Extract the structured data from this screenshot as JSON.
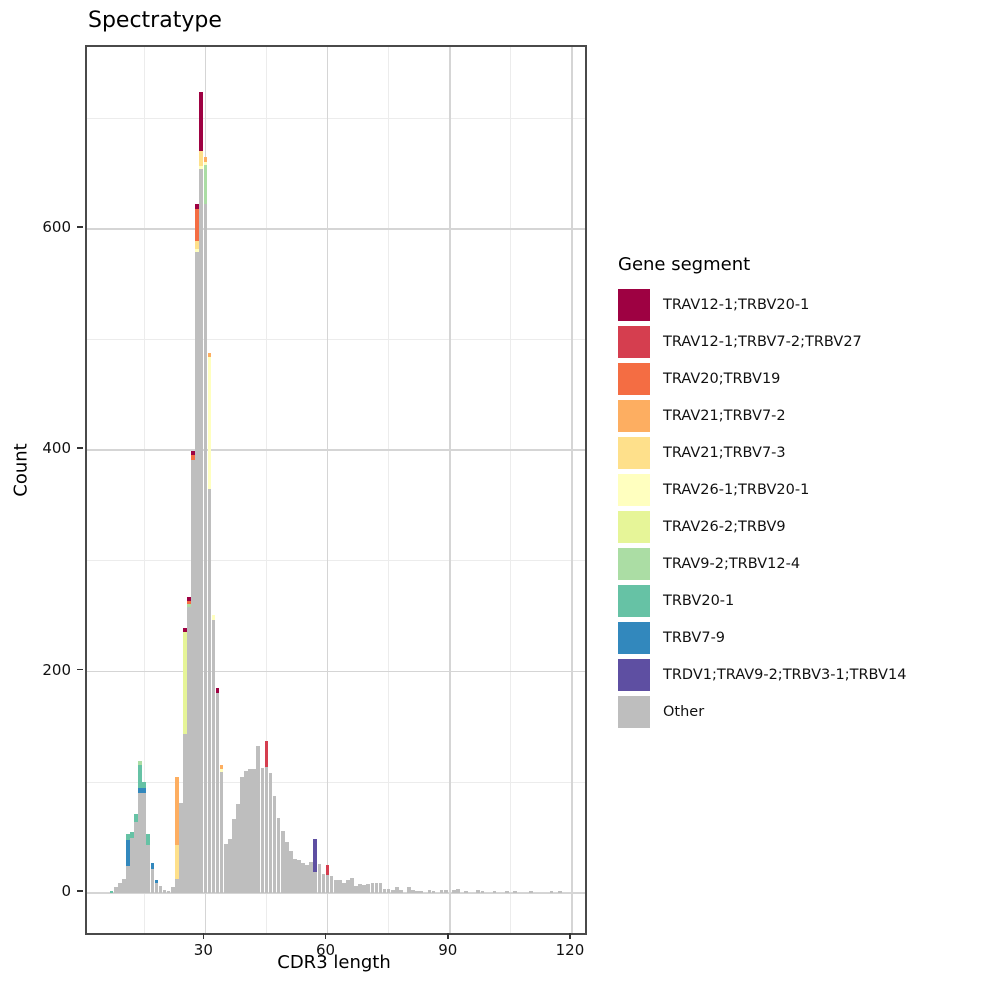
{
  "title": "Spectratype",
  "axes": {
    "x_label": "CDR3 length",
    "y_label": "Count",
    "x_tick_labels": [
      "30",
      "60",
      "90",
      "120"
    ],
    "y_tick_labels": [
      "0",
      "200",
      "400",
      "600"
    ]
  },
  "legend": {
    "title": "Gene segment",
    "entries": [
      {
        "key": "c1",
        "label": "TRAV12-1;TRBV20-1",
        "color": "#9E0142"
      },
      {
        "key": "c2",
        "label": "TRAV12-1;TRBV7-2;TRBV27",
        "color": "#D53E4F"
      },
      {
        "key": "c3",
        "label": "TRAV20;TRBV19",
        "color": "#F46D43"
      },
      {
        "key": "c4",
        "label": "TRAV21;TRBV7-2",
        "color": "#FDAE61"
      },
      {
        "key": "c5",
        "label": "TRAV21;TRBV7-3",
        "color": "#FEE08B"
      },
      {
        "key": "c6",
        "label": "TRAV26-1;TRBV20-1",
        "color": "#FFFFBF"
      },
      {
        "key": "c7",
        "label": "TRAV26-2;TRBV9",
        "color": "#E6F598"
      },
      {
        "key": "c8",
        "label": "TRAV9-2;TRBV12-4",
        "color": "#ABDDA4"
      },
      {
        "key": "c9",
        "label": "TRBV20-1",
        "color": "#66C2A5"
      },
      {
        "key": "c10",
        "label": "TRBV7-9",
        "color": "#3288BD"
      },
      {
        "key": "c11",
        "label": "TRDV1;TRAV9-2;TRBV3-1;TRBV14",
        "color": "#5E4FA2"
      },
      {
        "key": "other",
        "label": "Other",
        "color": "#BEBEBE"
      }
    ]
  },
  "chart_data": {
    "type": "bar",
    "subtype": "stacked-histogram",
    "title": "Spectratype",
    "xlabel": "CDR3 length",
    "ylabel": "Count",
    "grid": "on",
    "legend_position": "right",
    "x_range": [
      0.95,
      123.2
    ],
    "y_range": [
      -36.1,
      764.2
    ],
    "x_major_ticks": [
      30,
      60,
      90,
      120
    ],
    "x_minor_gridlines": [
      15,
      45,
      75,
      105
    ],
    "y_major_ticks": [
      0,
      200,
      400,
      600
    ],
    "y_minor_gridlines": [
      100,
      300,
      500,
      700
    ],
    "bar_width_units": 0.9,
    "stack_order_note": "segments listed bottom-to-top; 'other' at base, legend order c11->c1 upward",
    "bars": [
      {
        "x": 7,
        "segments": [
          [
            "c9",
            2
          ]
        ]
      },
      {
        "x": 8,
        "segments": [
          [
            "other",
            5
          ]
        ]
      },
      {
        "x": 9,
        "segments": [
          [
            "other",
            9
          ]
        ]
      },
      {
        "x": 10,
        "segments": [
          [
            "other",
            13
          ]
        ]
      },
      {
        "x": 11,
        "segments": [
          [
            "other",
            24
          ],
          [
            "c10",
            24
          ],
          [
            "c9",
            5
          ]
        ]
      },
      {
        "x": 12,
        "segments": [
          [
            "other",
            50
          ],
          [
            "c9",
            5
          ]
        ]
      },
      {
        "x": 13,
        "segments": [
          [
            "other",
            64
          ],
          [
            "c9",
            7
          ]
        ]
      },
      {
        "x": 14,
        "segments": [
          [
            "other",
            90
          ],
          [
            "c10",
            5
          ],
          [
            "c9",
            21
          ],
          [
            "c8",
            3
          ]
        ]
      },
      {
        "x": 15,
        "segments": [
          [
            "other",
            90
          ],
          [
            "c10",
            5
          ],
          [
            "c9",
            5
          ]
        ]
      },
      {
        "x": 16,
        "segments": [
          [
            "other",
            43
          ],
          [
            "c9",
            10
          ]
        ]
      },
      {
        "x": 17,
        "segments": [
          [
            "other",
            22
          ],
          [
            "c10",
            5
          ]
        ]
      },
      {
        "x": 18,
        "segments": [
          [
            "other",
            9
          ],
          [
            "c10",
            3
          ]
        ]
      },
      {
        "x": 19,
        "segments": [
          [
            "other",
            6
          ]
        ]
      },
      {
        "x": 20,
        "segments": [
          [
            "other",
            3
          ]
        ]
      },
      {
        "x": 21,
        "segments": [
          [
            "other",
            2
          ]
        ]
      },
      {
        "x": 22,
        "segments": [
          [
            "other",
            5
          ]
        ]
      },
      {
        "x": 23,
        "segments": [
          [
            "other",
            13
          ],
          [
            "c5",
            30
          ],
          [
            "c4",
            62
          ]
        ]
      },
      {
        "x": 24,
        "segments": [
          [
            "other",
            81
          ]
        ]
      },
      {
        "x": 25,
        "segments": [
          [
            "other",
            144
          ],
          [
            "c7",
            92
          ],
          [
            "c1",
            3
          ]
        ]
      },
      {
        "x": 26,
        "segments": [
          [
            "other",
            258
          ],
          [
            "c8",
            3
          ],
          [
            "c3",
            3
          ],
          [
            "c1",
            3
          ]
        ]
      },
      {
        "x": 27,
        "segments": [
          [
            "other",
            391
          ],
          [
            "c3",
            5
          ],
          [
            "c1",
            3
          ]
        ]
      },
      {
        "x": 28,
        "segments": [
          [
            "other",
            579
          ],
          [
            "c6",
            3
          ],
          [
            "c5",
            7
          ],
          [
            "c3",
            29
          ],
          [
            "c1",
            4
          ]
        ]
      },
      {
        "x": 29,
        "segments": [
          [
            "other",
            654
          ],
          [
            "c6",
            3
          ],
          [
            "c5",
            13
          ],
          [
            "c1",
            54
          ]
        ]
      },
      {
        "x": 30,
        "segments": [
          [
            "other",
            622
          ],
          [
            "c8",
            36
          ],
          [
            "c6",
            2
          ],
          [
            "c4",
            5
          ]
        ]
      },
      {
        "x": 31,
        "segments": [
          [
            "other",
            365
          ],
          [
            "c6",
            119
          ],
          [
            "c4",
            4
          ]
        ]
      },
      {
        "x": 32,
        "segments": [
          [
            "other",
            247
          ],
          [
            "c6",
            4
          ]
        ]
      },
      {
        "x": 33,
        "segments": [
          [
            "other",
            181
          ],
          [
            "c1",
            4
          ]
        ]
      },
      {
        "x": 34,
        "segments": [
          [
            "other",
            109
          ],
          [
            "c6",
            3
          ],
          [
            "c4",
            4
          ]
        ]
      },
      {
        "x": 35,
        "segments": [
          [
            "other",
            44
          ]
        ]
      },
      {
        "x": 36,
        "segments": [
          [
            "other",
            49
          ]
        ]
      },
      {
        "x": 37,
        "segments": [
          [
            "other",
            67
          ]
        ]
      },
      {
        "x": 38,
        "segments": [
          [
            "other",
            80
          ]
        ]
      },
      {
        "x": 39,
        "segments": [
          [
            "other",
            105
          ]
        ]
      },
      {
        "x": 40,
        "segments": [
          [
            "other",
            110
          ]
        ]
      },
      {
        "x": 41,
        "segments": [
          [
            "other",
            112
          ]
        ]
      },
      {
        "x": 42,
        "segments": [
          [
            "other",
            112
          ]
        ]
      },
      {
        "x": 43,
        "segments": [
          [
            "other",
            133
          ]
        ]
      },
      {
        "x": 44,
        "segments": [
          [
            "other",
            113
          ]
        ]
      },
      {
        "x": 45,
        "segments": [
          [
            "other",
            114
          ],
          [
            "c2",
            23
          ]
        ]
      },
      {
        "x": 46,
        "segments": [
          [
            "other",
            108
          ]
        ]
      },
      {
        "x": 47,
        "segments": [
          [
            "other",
            88
          ]
        ]
      },
      {
        "x": 48,
        "segments": [
          [
            "other",
            68
          ]
        ]
      },
      {
        "x": 49,
        "segments": [
          [
            "other",
            56
          ]
        ]
      },
      {
        "x": 50,
        "segments": [
          [
            "other",
            46
          ]
        ]
      },
      {
        "x": 51,
        "segments": [
          [
            "other",
            38
          ]
        ]
      },
      {
        "x": 52,
        "segments": [
          [
            "other",
            31
          ]
        ]
      },
      {
        "x": 53,
        "segments": [
          [
            "other",
            30
          ]
        ]
      },
      {
        "x": 54,
        "segments": [
          [
            "other",
            27
          ]
        ]
      },
      {
        "x": 55,
        "segments": [
          [
            "other",
            25
          ]
        ]
      },
      {
        "x": 56,
        "segments": [
          [
            "other",
            28
          ]
        ]
      },
      {
        "x": 57,
        "segments": [
          [
            "other",
            19
          ],
          [
            "c11",
            30
          ]
        ]
      },
      {
        "x": 58,
        "segments": [
          [
            "other",
            26
          ]
        ]
      },
      {
        "x": 59,
        "segments": [
          [
            "other",
            17
          ]
        ]
      },
      {
        "x": 60,
        "segments": [
          [
            "other",
            16
          ],
          [
            "c2",
            9
          ]
        ]
      },
      {
        "x": 61,
        "segments": [
          [
            "other",
            15
          ]
        ]
      },
      {
        "x": 62,
        "segments": [
          [
            "other",
            12
          ]
        ]
      },
      {
        "x": 63,
        "segments": [
          [
            "other",
            12
          ]
        ]
      },
      {
        "x": 64,
        "segments": [
          [
            "other",
            9
          ]
        ]
      },
      {
        "x": 65,
        "segments": [
          [
            "other",
            12
          ]
        ]
      },
      {
        "x": 66,
        "segments": [
          [
            "other",
            14
          ]
        ]
      },
      {
        "x": 67,
        "segments": [
          [
            "other",
            6
          ]
        ]
      },
      {
        "x": 68,
        "segments": [
          [
            "other",
            8
          ]
        ]
      },
      {
        "x": 69,
        "segments": [
          [
            "other",
            7
          ]
        ]
      },
      {
        "x": 70,
        "segments": [
          [
            "other",
            8
          ]
        ]
      },
      {
        "x": 71,
        "segments": [
          [
            "other",
            9
          ]
        ]
      },
      {
        "x": 72,
        "segments": [
          [
            "other",
            9
          ]
        ]
      },
      {
        "x": 73,
        "segments": [
          [
            "other",
            9
          ]
        ]
      },
      {
        "x": 74,
        "segments": [
          [
            "other",
            4
          ]
        ]
      },
      {
        "x": 75,
        "segments": [
          [
            "other",
            4
          ]
        ]
      },
      {
        "x": 76,
        "segments": [
          [
            "other",
            3
          ]
        ]
      },
      {
        "x": 77,
        "segments": [
          [
            "other",
            5
          ]
        ]
      },
      {
        "x": 78,
        "segments": [
          [
            "other",
            3
          ]
        ]
      },
      {
        "x": 80,
        "segments": [
          [
            "other",
            5
          ]
        ]
      },
      {
        "x": 81,
        "segments": [
          [
            "other",
            3
          ]
        ]
      },
      {
        "x": 82,
        "segments": [
          [
            "other",
            2
          ]
        ]
      },
      {
        "x": 83,
        "segments": [
          [
            "other",
            2
          ]
        ]
      },
      {
        "x": 85,
        "segments": [
          [
            "other",
            3
          ]
        ]
      },
      {
        "x": 86,
        "segments": [
          [
            "other",
            2
          ]
        ]
      },
      {
        "x": 88,
        "segments": [
          [
            "other",
            3
          ]
        ]
      },
      {
        "x": 89,
        "segments": [
          [
            "other",
            3
          ]
        ]
      },
      {
        "x": 91,
        "segments": [
          [
            "other",
            3
          ]
        ]
      },
      {
        "x": 92,
        "segments": [
          [
            "other",
            4
          ]
        ]
      },
      {
        "x": 94,
        "segments": [
          [
            "other",
            2
          ]
        ]
      },
      {
        "x": 97,
        "segments": [
          [
            "other",
            3
          ]
        ]
      },
      {
        "x": 98,
        "segments": [
          [
            "other",
            2
          ]
        ]
      },
      {
        "x": 101,
        "segments": [
          [
            "other",
            2
          ]
        ]
      },
      {
        "x": 104,
        "segments": [
          [
            "other",
            2
          ]
        ]
      },
      {
        "x": 106,
        "segments": [
          [
            "other",
            2
          ]
        ]
      },
      {
        "x": 110,
        "segments": [
          [
            "other",
            2
          ]
        ]
      },
      {
        "x": 115,
        "segments": [
          [
            "other",
            2
          ]
        ]
      },
      {
        "x": 117,
        "segments": [
          [
            "other",
            2
          ]
        ]
      }
    ]
  }
}
